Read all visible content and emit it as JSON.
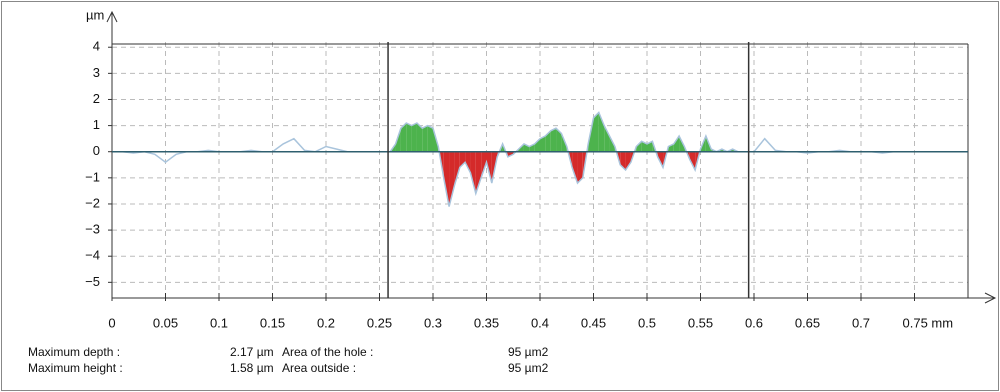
{
  "chart_data": {
    "type": "profile",
    "y_label": "µm",
    "xlim": [
      0,
      0.8
    ],
    "ylim": [
      -5.6,
      4.2
    ],
    "xticks": [
      0,
      0.05,
      0.1,
      0.15,
      0.2,
      0.25,
      0.3,
      0.35,
      0.4,
      0.45,
      0.5,
      0.55,
      0.6,
      0.65,
      0.7,
      {
        "value": 0.75,
        "label": "0.75 mm"
      }
    ],
    "yticks": [
      {
        "value": -5,
        "label": "−5"
      },
      {
        "value": -4,
        "label": "−4"
      },
      {
        "value": -3,
        "label": "−3"
      },
      {
        "value": -2,
        "label": "−2"
      },
      {
        "value": -1,
        "label": "−1"
      },
      0,
      1,
      2,
      3,
      4
    ],
    "grid": true,
    "cursors": [
      0.258,
      0.595
    ],
    "line_color": "#a9c4dc",
    "above_color": "#4db34d",
    "below_color": "#d42a2a",
    "x": [
      0,
      0.01,
      0.02,
      0.03,
      0.04,
      0.05,
      0.06,
      0.07,
      0.08,
      0.09,
      0.1,
      0.11,
      0.12,
      0.13,
      0.14,
      0.15,
      0.16,
      0.17,
      0.18,
      0.19,
      0.2,
      0.21,
      0.22,
      0.23,
      0.24,
      0.25,
      0.26,
      0.265,
      0.27,
      0.275,
      0.28,
      0.285,
      0.29,
      0.295,
      0.3,
      0.305,
      0.31,
      0.315,
      0.32,
      0.325,
      0.33,
      0.335,
      0.34,
      0.345,
      0.35,
      0.355,
      0.36,
      0.365,
      0.37,
      0.375,
      0.38,
      0.385,
      0.39,
      0.395,
      0.4,
      0.405,
      0.41,
      0.415,
      0.42,
      0.425,
      0.43,
      0.435,
      0.44,
      0.445,
      0.45,
      0.455,
      0.46,
      0.465,
      0.47,
      0.475,
      0.48,
      0.485,
      0.49,
      0.495,
      0.5,
      0.505,
      0.51,
      0.515,
      0.52,
      0.525,
      0.53,
      0.535,
      0.54,
      0.545,
      0.55,
      0.555,
      0.56,
      0.565,
      0.57,
      0.575,
      0.58,
      0.585,
      0.59,
      0.595,
      0.6,
      0.61,
      0.62,
      0.63,
      0.64,
      0.65,
      0.66,
      0.67,
      0.68,
      0.69,
      0.7,
      0.71,
      0.72,
      0.73,
      0.74,
      0.75,
      0.76,
      0.77,
      0.78,
      0.79
    ],
    "values": [
      0,
      0,
      -0.05,
      0,
      -0.1,
      -0.4,
      -0.1,
      0,
      0,
      0.05,
      0,
      0,
      0,
      0.05,
      0,
      0,
      0.3,
      0.5,
      0.05,
      0,
      0.2,
      0.1,
      0,
      0,
      0,
      0,
      0,
      0.3,
      0.9,
      1.1,
      1.0,
      1.1,
      0.9,
      1.0,
      0.9,
      0.2,
      -1.0,
      -2.1,
      -1.3,
      -0.6,
      -0.4,
      -0.8,
      -1.6,
      -1.0,
      -0.4,
      -1.2,
      -0.2,
      0.3,
      -0.2,
      -0.1,
      0.1,
      0.3,
      0.2,
      0.3,
      0.5,
      0.6,
      0.8,
      0.9,
      0.7,
      0.2,
      -0.6,
      -1.2,
      -1.0,
      0.3,
      1.3,
      1.5,
      1.0,
      0.6,
      0.2,
      -0.5,
      -0.7,
      -0.4,
      0.2,
      0.4,
      0.3,
      0.4,
      -0.2,
      -0.6,
      0.2,
      0.3,
      0.6,
      0.2,
      -0.3,
      -0.7,
      0.1,
      0.6,
      0.1,
      0,
      0.1,
      0,
      0.1,
      0,
      0,
      0,
      0,
      0.5,
      0.05,
      0,
      0,
      -0.05,
      0,
      0,
      0.05,
      0,
      0,
      0,
      -0.05,
      0,
      0,
      0,
      0,
      0,
      0,
      0
    ],
    "stats": [
      {
        "label": "Maximum depth :",
        "value": "2.17 µm",
        "area_label": "Area of the hole :",
        "area": "95 µm2"
      },
      {
        "label": "Maximum height :",
        "value": "1.58 µm",
        "area_label": "Area outside :",
        "area": "95 µm2"
      }
    ]
  }
}
